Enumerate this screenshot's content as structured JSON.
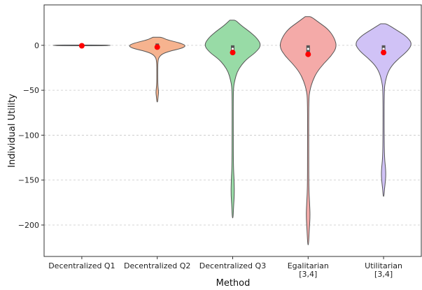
{
  "chart_data": {
    "type": "violin",
    "title": "",
    "xlabel": "Method",
    "ylabel": "Individual Utility",
    "ylim": [
      -235,
      45
    ],
    "yticks": [
      0,
      -50,
      -100,
      -150,
      -200
    ],
    "grid": true,
    "series": [
      {
        "label_lines": [
          "Decentralized Q1"
        ],
        "color": "#a8c4e6",
        "top": 0.4,
        "bottom": -0.5,
        "median": -0.2,
        "q1": -0.6,
        "q3": 0.2,
        "mean": -0.5,
        "profile": [
          [
            0.4,
            0.6
          ],
          [
            0.1,
            1.0
          ],
          [
            -0.2,
            1.0
          ],
          [
            -0.5,
            0.6
          ]
        ]
      },
      {
        "label_lines": [
          "Decentralized Q2"
        ],
        "color": "#f6b38f",
        "top": 9,
        "bottom": -63,
        "median": -1,
        "q1": -4,
        "q3": 2,
        "mean": -2,
        "profile": [
          [
            9,
            0.15
          ],
          [
            6,
            0.35
          ],
          [
            3,
            0.75
          ],
          [
            0,
            1.0
          ],
          [
            -3,
            0.9
          ],
          [
            -6,
            0.5
          ],
          [
            -9,
            0.2
          ],
          [
            -13,
            0.06
          ],
          [
            -18,
            0.02
          ],
          [
            -30,
            0.015
          ],
          [
            -45,
            0.02
          ],
          [
            -52,
            0.05
          ],
          [
            -57,
            0.03
          ],
          [
            -63,
            0.0
          ]
        ]
      },
      {
        "label_lines": [
          "Decentralized Q3"
        ],
        "color": "#98dba6",
        "top": 28,
        "bottom": -192,
        "median": -4,
        "q1": -8,
        "q3": 0,
        "mean": -8,
        "profile": [
          [
            28,
            0.1
          ],
          [
            22,
            0.3
          ],
          [
            15,
            0.6
          ],
          [
            8,
            0.85
          ],
          [
            0,
            1.0
          ],
          [
            -8,
            0.8
          ],
          [
            -15,
            0.5
          ],
          [
            -22,
            0.3
          ],
          [
            -30,
            0.15
          ],
          [
            -38,
            0.08
          ],
          [
            -46,
            0.03
          ],
          [
            -60,
            0.02
          ],
          [
            -100,
            0.02
          ],
          [
            -135,
            0.025
          ],
          [
            -150,
            0.05
          ],
          [
            -165,
            0.06
          ],
          [
            -180,
            0.03
          ],
          [
            -192,
            0.0
          ]
        ]
      },
      {
        "label_lines": [
          "Egalitarian",
          "[3,4]"
        ],
        "color": "#f4aaa8",
        "top": 32,
        "bottom": -222,
        "median": -4,
        "q1": -8,
        "q3": 0,
        "mean": -10,
        "profile": [
          [
            32,
            0.1
          ],
          [
            26,
            0.35
          ],
          [
            18,
            0.7
          ],
          [
            8,
            0.92
          ],
          [
            -2,
            1.0
          ],
          [
            -12,
            0.8
          ],
          [
            -20,
            0.55
          ],
          [
            -30,
            0.3
          ],
          [
            -40,
            0.15
          ],
          [
            -50,
            0.06
          ],
          [
            -60,
            0.02
          ],
          [
            -120,
            0.02
          ],
          [
            -160,
            0.025
          ],
          [
            -175,
            0.05
          ],
          [
            -190,
            0.07
          ],
          [
            -205,
            0.04
          ],
          [
            -222,
            0.0
          ]
        ]
      },
      {
        "label_lines": [
          "Utilitarian",
          "[3,4]"
        ],
        "color": "#d0c2f6",
        "top": 24,
        "bottom": -168,
        "median": -4,
        "q1": -8,
        "q3": 0,
        "mean": -8,
        "profile": [
          [
            24,
            0.1
          ],
          [
            18,
            0.4
          ],
          [
            10,
            0.8
          ],
          [
            2,
            1.0
          ],
          [
            -6,
            0.85
          ],
          [
            -14,
            0.55
          ],
          [
            -22,
            0.3
          ],
          [
            -30,
            0.15
          ],
          [
            -40,
            0.06
          ],
          [
            -50,
            0.02
          ],
          [
            -100,
            0.02
          ],
          [
            -125,
            0.03
          ],
          [
            -140,
            0.08
          ],
          [
            -150,
            0.07
          ],
          [
            -160,
            0.03
          ],
          [
            -168,
            0.0
          ]
        ]
      }
    ]
  }
}
